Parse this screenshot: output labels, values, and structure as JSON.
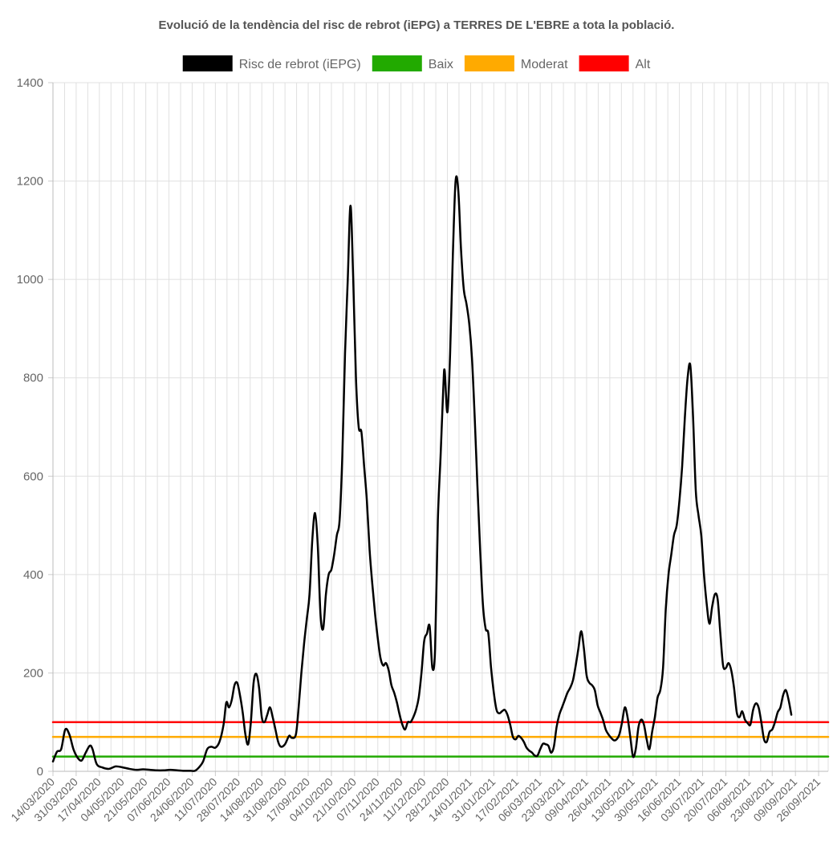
{
  "chart_data": {
    "type": "line",
    "title": "Evolució de la tendència del risc de rebrot (iEPG) a TERRES DE L'EBRE a tota la població.",
    "xlabel": "",
    "ylabel": "",
    "ylim": [
      0,
      1400
    ],
    "yticks": [
      0,
      200,
      400,
      600,
      800,
      1000,
      1200,
      1400
    ],
    "grid": true,
    "legend_position": "top",
    "x_tick_labels": [
      "14/03/2020",
      "31/03/2020",
      "17/04/2020",
      "04/05/2020",
      "21/05/2020",
      "07/06/2020",
      "24/06/2020",
      "11/07/2020",
      "28/07/2020",
      "14/08/2020",
      "31/08/2020",
      "17/09/2020",
      "04/10/2020",
      "21/10/2020",
      "07/11/2020",
      "24/11/2020",
      "11/12/2020",
      "28/12/2020",
      "14/01/2021",
      "31/01/2021",
      "17/02/2021",
      "06/03/2021",
      "23/03/2021",
      "09/04/2021",
      "26/04/2021",
      "13/05/2021",
      "30/05/2021",
      "16/06/2021",
      "03/07/2021",
      "20/07/2021",
      "06/08/2021",
      "23/08/2021",
      "09/09/2021",
      "26/09/2021"
    ],
    "x_start": "14/03/2020",
    "x_end": "03/10/2021",
    "series": [
      {
        "name": "Risc de rebrot (iEPG)",
        "color": "#000000",
        "points": [
          [
            "14/03/2020",
            20
          ],
          [
            "17/03/2020",
            40
          ],
          [
            "20/03/2020",
            45
          ],
          [
            "23/03/2020",
            85
          ],
          [
            "26/03/2020",
            75
          ],
          [
            "29/03/2020",
            45
          ],
          [
            "01/04/2020",
            28
          ],
          [
            "04/04/2020",
            22
          ],
          [
            "07/04/2020",
            38
          ],
          [
            "10/04/2020",
            52
          ],
          [
            "12/04/2020",
            45
          ],
          [
            "15/04/2020",
            15
          ],
          [
            "19/04/2020",
            8
          ],
          [
            "24/04/2020",
            5
          ],
          [
            "29/04/2020",
            10
          ],
          [
            "04/05/2020",
            8
          ],
          [
            "09/05/2020",
            5
          ],
          [
            "14/05/2020",
            3
          ],
          [
            "19/05/2020",
            4
          ],
          [
            "24/05/2020",
            3
          ],
          [
            "29/05/2020",
            2
          ],
          [
            "03/06/2020",
            2
          ],
          [
            "08/06/2020",
            3
          ],
          [
            "13/06/2020",
            2
          ],
          [
            "18/06/2020",
            1
          ],
          [
            "23/06/2020",
            1
          ],
          [
            "26/06/2020",
            1
          ],
          [
            "29/06/2020",
            8
          ],
          [
            "02/07/2020",
            20
          ],
          [
            "05/07/2020",
            45
          ],
          [
            "08/07/2020",
            50
          ],
          [
            "11/07/2020",
            48
          ],
          [
            "14/07/2020",
            60
          ],
          [
            "17/07/2020",
            95
          ],
          [
            "19/07/2020",
            140
          ],
          [
            "21/07/2020",
            130
          ],
          [
            "23/07/2020",
            145
          ],
          [
            "25/07/2020",
            175
          ],
          [
            "27/07/2020",
            180
          ],
          [
            "29/07/2020",
            155
          ],
          [
            "31/07/2020",
            120
          ],
          [
            "02/08/2020",
            75
          ],
          [
            "04/08/2020",
            55
          ],
          [
            "06/08/2020",
            100
          ],
          [
            "08/08/2020",
            180
          ],
          [
            "10/08/2020",
            198
          ],
          [
            "12/08/2020",
            170
          ],
          [
            "14/08/2020",
            110
          ],
          [
            "16/08/2020",
            100
          ],
          [
            "18/08/2020",
            115
          ],
          [
            "20/08/2020",
            130
          ],
          [
            "22/08/2020",
            110
          ],
          [
            "24/08/2020",
            85
          ],
          [
            "26/08/2020",
            60
          ],
          [
            "28/08/2020",
            50
          ],
          [
            "31/08/2020",
            55
          ],
          [
            "03/09/2020",
            72
          ],
          [
            "05/09/2020",
            68
          ],
          [
            "08/09/2020",
            75
          ],
          [
            "10/09/2020",
            130
          ],
          [
            "12/09/2020",
            200
          ],
          [
            "14/09/2020",
            260
          ],
          [
            "16/09/2020",
            310
          ],
          [
            "18/09/2020",
            360
          ],
          [
            "20/09/2020",
            470
          ],
          [
            "22/09/2020",
            525
          ],
          [
            "24/09/2020",
            460
          ],
          [
            "26/09/2020",
            320
          ],
          [
            "28/09/2020",
            290
          ],
          [
            "30/09/2020",
            360
          ],
          [
            "02/10/2020",
            400
          ],
          [
            "04/10/2020",
            410
          ],
          [
            "06/10/2020",
            440
          ],
          [
            "08/10/2020",
            480
          ],
          [
            "10/10/2020",
            510
          ],
          [
            "12/10/2020",
            640
          ],
          [
            "14/10/2020",
            850
          ],
          [
            "16/10/2020",
            1000
          ],
          [
            "18/10/2020",
            1150
          ],
          [
            "20/10/2020",
            1000
          ],
          [
            "22/10/2020",
            800
          ],
          [
            "24/10/2020",
            700
          ],
          [
            "26/10/2020",
            690
          ],
          [
            "28/10/2020",
            620
          ],
          [
            "30/10/2020",
            550
          ],
          [
            "01/11/2020",
            450
          ],
          [
            "03/11/2020",
            380
          ],
          [
            "05/11/2020",
            320
          ],
          [
            "07/11/2020",
            270
          ],
          [
            "09/11/2020",
            230
          ],
          [
            "11/11/2020",
            215
          ],
          [
            "13/11/2020",
            220
          ],
          [
            "15/11/2020",
            205
          ],
          [
            "17/11/2020",
            175
          ],
          [
            "19/11/2020",
            160
          ],
          [
            "21/11/2020",
            140
          ],
          [
            "23/11/2020",
            115
          ],
          [
            "25/11/2020",
            95
          ],
          [
            "27/11/2020",
            85
          ],
          [
            "29/11/2020",
            100
          ],
          [
            "01/12/2020",
            100
          ],
          [
            "03/12/2020",
            110
          ],
          [
            "05/12/2020",
            125
          ],
          [
            "07/12/2020",
            150
          ],
          [
            "09/12/2020",
            200
          ],
          [
            "11/12/2020",
            265
          ],
          [
            "13/12/2020",
            280
          ],
          [
            "15/12/2020",
            295
          ],
          [
            "17/12/2020",
            210
          ],
          [
            "19/12/2020",
            250
          ],
          [
            "21/12/2020",
            510
          ],
          [
            "23/12/2020",
            640
          ],
          [
            "25/12/2020",
            780
          ],
          [
            "26/12/2020",
            815
          ],
          [
            "28/12/2020",
            730
          ],
          [
            "30/12/2020",
            850
          ],
          [
            "01/01/2021",
            1050
          ],
          [
            "03/01/2021",
            1200
          ],
          [
            "05/01/2021",
            1180
          ],
          [
            "07/01/2021",
            1060
          ],
          [
            "09/01/2021",
            980
          ],
          [
            "11/01/2021",
            950
          ],
          [
            "13/01/2021",
            910
          ],
          [
            "15/01/2021",
            840
          ],
          [
            "17/01/2021",
            720
          ],
          [
            "19/01/2021",
            580
          ],
          [
            "21/01/2021",
            450
          ],
          [
            "23/01/2021",
            340
          ],
          [
            "25/01/2021",
            290
          ],
          [
            "27/01/2021",
            280
          ],
          [
            "29/01/2021",
            210
          ],
          [
            "31/01/2021",
            160
          ],
          [
            "02/02/2021",
            125
          ],
          [
            "04/02/2021",
            118
          ],
          [
            "06/02/2021",
            122
          ],
          [
            "08/02/2021",
            125
          ],
          [
            "10/02/2021",
            115
          ],
          [
            "12/02/2021",
            95
          ],
          [
            "14/02/2021",
            70
          ],
          [
            "16/02/2021",
            65
          ],
          [
            "18/02/2021",
            72
          ],
          [
            "20/02/2021",
            68
          ],
          [
            "22/02/2021",
            60
          ],
          [
            "24/02/2021",
            48
          ],
          [
            "26/02/2021",
            42
          ],
          [
            "28/02/2021",
            38
          ],
          [
            "02/03/2021",
            32
          ],
          [
            "04/03/2021",
            32
          ],
          [
            "06/03/2021",
            45
          ],
          [
            "08/03/2021",
            56
          ],
          [
            "10/03/2021",
            55
          ],
          [
            "12/03/2021",
            52
          ],
          [
            "14/03/2021",
            38
          ],
          [
            "16/03/2021",
            50
          ],
          [
            "18/03/2021",
            90
          ],
          [
            "20/03/2021",
            115
          ],
          [
            "22/03/2021",
            130
          ],
          [
            "24/03/2021",
            145
          ],
          [
            "26/03/2021",
            160
          ],
          [
            "28/03/2021",
            170
          ],
          [
            "30/03/2021",
            185
          ],
          [
            "01/04/2021",
            215
          ],
          [
            "03/04/2021",
            250
          ],
          [
            "05/04/2021",
            285
          ],
          [
            "07/04/2021",
            250
          ],
          [
            "09/04/2021",
            195
          ],
          [
            "11/04/2021",
            180
          ],
          [
            "13/04/2021",
            175
          ],
          [
            "15/04/2021",
            165
          ],
          [
            "17/04/2021",
            135
          ],
          [
            "19/04/2021",
            120
          ],
          [
            "21/04/2021",
            105
          ],
          [
            "23/04/2021",
            85
          ],
          [
            "25/04/2021",
            75
          ],
          [
            "27/04/2021",
            68
          ],
          [
            "29/04/2021",
            63
          ],
          [
            "01/05/2021",
            65
          ],
          [
            "03/05/2021",
            75
          ],
          [
            "05/05/2021",
            100
          ],
          [
            "07/05/2021",
            130
          ],
          [
            "09/05/2021",
            110
          ],
          [
            "11/05/2021",
            70
          ],
          [
            "13/05/2021",
            30
          ],
          [
            "15/05/2021",
            45
          ],
          [
            "17/05/2021",
            90
          ],
          [
            "19/05/2021",
            105
          ],
          [
            "21/05/2021",
            95
          ],
          [
            "23/05/2021",
            65
          ],
          [
            "25/05/2021",
            45
          ],
          [
            "27/05/2021",
            80
          ],
          [
            "29/05/2021",
            110
          ],
          [
            "31/05/2021",
            150
          ],
          [
            "02/06/2021",
            165
          ],
          [
            "04/06/2021",
            210
          ],
          [
            "06/06/2021",
            330
          ],
          [
            "08/06/2021",
            400
          ],
          [
            "10/06/2021",
            440
          ],
          [
            "12/06/2021",
            480
          ],
          [
            "14/06/2021",
            500
          ],
          [
            "16/06/2021",
            550
          ],
          [
            "18/06/2021",
            620
          ],
          [
            "20/06/2021",
            720
          ],
          [
            "22/06/2021",
            800
          ],
          [
            "24/06/2021",
            825
          ],
          [
            "26/06/2021",
            720
          ],
          [
            "28/06/2021",
            570
          ],
          [
            "30/06/2021",
            520
          ],
          [
            "02/07/2021",
            480
          ],
          [
            "04/07/2021",
            400
          ],
          [
            "06/07/2021",
            340
          ],
          [
            "08/07/2021",
            300
          ],
          [
            "10/07/2021",
            335
          ],
          [
            "12/07/2021",
            360
          ],
          [
            "14/07/2021",
            350
          ],
          [
            "16/07/2021",
            280
          ],
          [
            "18/07/2021",
            215
          ],
          [
            "20/07/2021",
            210
          ],
          [
            "22/07/2021",
            220
          ],
          [
            "24/07/2021",
            205
          ],
          [
            "26/07/2021",
            170
          ],
          [
            "28/07/2021",
            120
          ],
          [
            "30/07/2021",
            110
          ],
          [
            "01/08/2021",
            122
          ],
          [
            "03/08/2021",
            105
          ],
          [
            "05/08/2021",
            98
          ],
          [
            "07/08/2021",
            95
          ],
          [
            "09/08/2021",
            125
          ],
          [
            "11/08/2021",
            138
          ],
          [
            "13/08/2021",
            130
          ],
          [
            "15/08/2021",
            100
          ],
          [
            "17/08/2021",
            65
          ],
          [
            "19/08/2021",
            60
          ],
          [
            "21/08/2021",
            80
          ],
          [
            "23/08/2021",
            85
          ],
          [
            "25/08/2021",
            100
          ],
          [
            "27/08/2021",
            120
          ],
          [
            "29/08/2021",
            130
          ],
          [
            "31/08/2021",
            155
          ],
          [
            "02/09/2021",
            165
          ],
          [
            "04/09/2021",
            145
          ],
          [
            "06/09/2021",
            115
          ]
        ]
      },
      {
        "name": "Baix",
        "color": "#22aa00",
        "points": [
          [
            "14/03/2020",
            30
          ],
          [
            "03/10/2021",
            30
          ]
        ]
      },
      {
        "name": "Moderat",
        "color": "#ffaa00",
        "points": [
          [
            "14/03/2020",
            70
          ],
          [
            "03/10/2021",
            70
          ]
        ]
      },
      {
        "name": "Alt",
        "color": "#ff0000",
        "points": [
          [
            "14/03/2020",
            100
          ],
          [
            "03/10/2021",
            100
          ]
        ]
      }
    ]
  }
}
